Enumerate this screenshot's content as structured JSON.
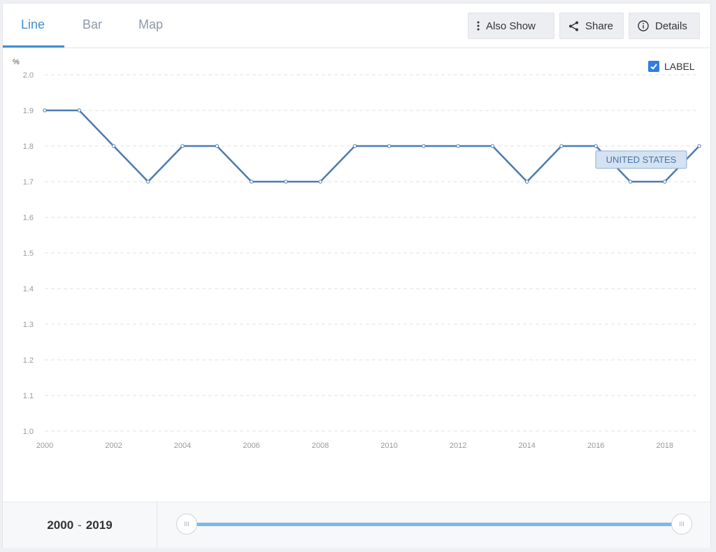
{
  "tabs": [
    {
      "label": "Line",
      "active": true
    },
    {
      "label": "Bar",
      "active": false
    },
    {
      "label": "Map",
      "active": false
    }
  ],
  "toolbar": {
    "also_show_label": "Also Show",
    "share_label": "Share",
    "details_label": "Details"
  },
  "label_toggle": {
    "label": "LABEL",
    "checked": true
  },
  "range": {
    "start": "2000",
    "separator": "-",
    "end": "2019"
  },
  "slider": {
    "handle_glyph": "III"
  },
  "colors": {
    "accent": "#3d8fd1",
    "series": "#4a7bb0",
    "checkbox": "#2f7ee0",
    "slider": "#7db8e6"
  },
  "chart_data": {
    "type": "line",
    "ylabel": "%",
    "ylim": [
      1.0,
      2.0
    ],
    "yticks": [
      "1.0",
      "1.1",
      "1.2",
      "1.3",
      "1.4",
      "1.5",
      "1.6",
      "1.7",
      "1.8",
      "1.9",
      "2.0"
    ],
    "xlim": [
      2000,
      2019
    ],
    "xticks": [
      "2000",
      "2002",
      "2004",
      "2006",
      "2008",
      "2010",
      "2012",
      "2014",
      "2016",
      "2018"
    ],
    "grid": true,
    "x": [
      2000,
      2001,
      2002,
      2003,
      2004,
      2005,
      2006,
      2007,
      2008,
      2009,
      2010,
      2011,
      2012,
      2013,
      2014,
      2015,
      2016,
      2017,
      2018,
      2019
    ],
    "series": [
      {
        "name": "UNITED STATES",
        "values": [
          1.9,
          1.9,
          1.8,
          1.7,
          1.8,
          1.8,
          1.7,
          1.7,
          1.7,
          1.8,
          1.8,
          1.8,
          1.8,
          1.8,
          1.7,
          1.8,
          1.8,
          1.7,
          1.7,
          1.8
        ]
      }
    ]
  }
}
